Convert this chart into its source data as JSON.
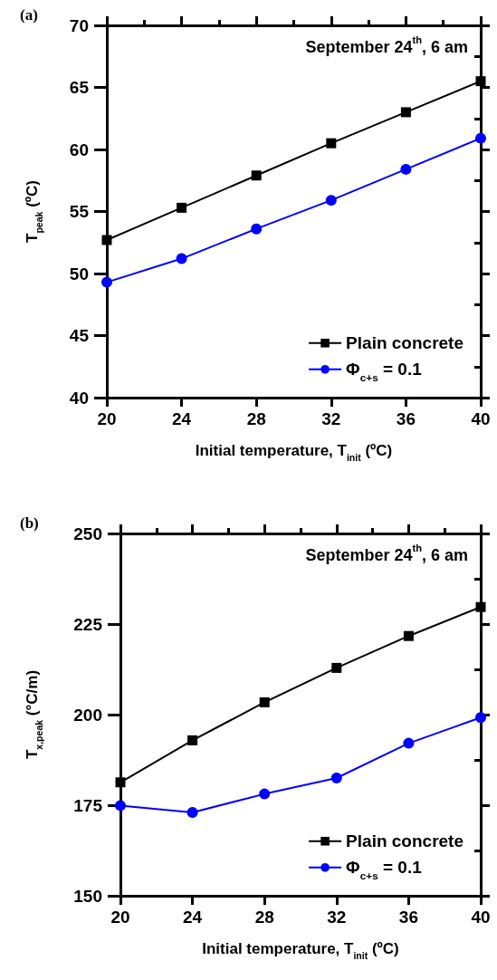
{
  "chart_data": [
    {
      "type": "line",
      "xlabel": "Initial temperature, T$_{init}$ (ºC)",
      "ylabel": "T$_{peak}$ (ºC)",
      "annotations": [
        "(a)",
        "September 24$^{th}$, 6 am"
      ],
      "x": [
        20,
        24,
        28,
        32,
        36,
        40
      ],
      "xlim": [
        20,
        40
      ],
      "xticks": [
        20,
        24,
        28,
        32,
        36,
        40
      ],
      "ylim": [
        40,
        70
      ],
      "yticks": [
        40,
        45,
        50,
        55,
        60,
        65,
        70
      ],
      "grid": false,
      "legend": "bottom right",
      "line_style": "solid",
      "series": [
        {
          "name": "Plain concrete",
          "color": "#000000",
          "marker": "square",
          "values": [
            52.7,
            55.3,
            57.9,
            60.5,
            63.0,
            65.5
          ]
        },
        {
          "name": "Φ$_{c+s}$ = 0.1",
          "color": "#0000ff",
          "marker": "circle",
          "values": [
            49.3,
            51.2,
            53.6,
            55.9,
            58.4,
            60.9
          ]
        }
      ]
    },
    {
      "type": "line",
      "xlabel": "Initial temperature, T$_{init}$ (ºC)",
      "ylabel": "T$_{x,peak}$ (°C/m)",
      "annotations": [
        "(b)",
        "September 24$^{th}$, 6 am"
      ],
      "x": [
        20,
        24,
        28,
        32,
        36,
        40
      ],
      "xlim": [
        20,
        40
      ],
      "xticks": [
        20,
        24,
        28,
        32,
        36,
        40
      ],
      "ylim": [
        150,
        250
      ],
      "yticks": [
        150,
        175,
        200,
        225,
        250
      ],
      "grid": false,
      "legend": "bottom right",
      "line_style": "solid",
      "series": [
        {
          "name": "Plain concrete",
          "color": "#000000",
          "marker": "square",
          "values": [
            181.3,
            192.9,
            203.4,
            212.9,
            221.7,
            229.7
          ]
        },
        {
          "name": "Φ$_{c+s}$ = 0.1",
          "color": "#0000ff",
          "marker": "circle",
          "values": [
            174.9,
            173.0,
            178.1,
            182.5,
            192.1,
            199.2
          ]
        }
      ]
    }
  ]
}
